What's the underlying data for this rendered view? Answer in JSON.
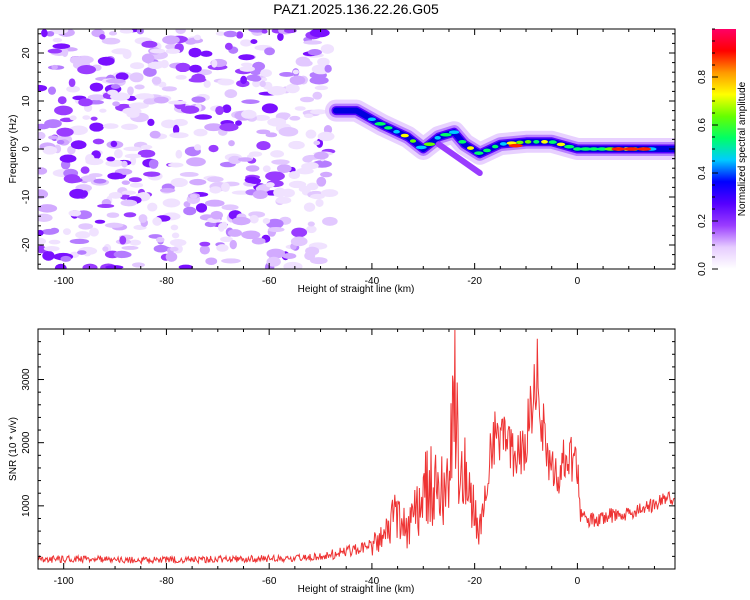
{
  "title": "PAZ1.2025.136.22.26.G05",
  "chart_data": [
    {
      "type": "heatmap",
      "xlabel": "Height of straight line (km)",
      "ylabel": "Frequency (Hz)",
      "xlim": [
        -105,
        19
      ],
      "ylim": [
        -25,
        25
      ],
      "x_ticks": [
        -100,
        -80,
        -60,
        -40,
        -20,
        0
      ],
      "x_tick_labels": [
        "-100",
        "-80",
        "-60",
        "-40",
        "-20",
        "0"
      ],
      "y_ticks": [
        20,
        10,
        0,
        -10,
        -20
      ],
      "y_tick_labels": [
        "20",
        "10",
        "0",
        "-10",
        "-20"
      ],
      "noise_region_x": [
        -105,
        -48
      ],
      "signal_ridge": [
        {
          "x": -47,
          "y": 8
        },
        {
          "x": -43,
          "y": 8
        },
        {
          "x": -38,
          "y": 5
        },
        {
          "x": -33,
          "y": 2.5
        },
        {
          "x": -30,
          "y": 0
        },
        {
          "x": -27,
          "y": 2.5
        },
        {
          "x": -24,
          "y": 3.5
        },
        {
          "x": -22,
          "y": 1
        },
        {
          "x": -19,
          "y": -1
        },
        {
          "x": -15,
          "y": 1
        },
        {
          "x": -10,
          "y": 1.5
        },
        {
          "x": -5,
          "y": 1.5
        },
        {
          "x": 0,
          "y": 0
        },
        {
          "x": 5,
          "y": 0
        },
        {
          "x": 10,
          "y": 0
        },
        {
          "x": 19,
          "y": 0
        }
      ],
      "colorbar": {
        "label": "Normalized spectral amplitude",
        "range": [
          0,
          1
        ],
        "ticks": [
          0.0,
          0.2,
          0.4,
          0.6,
          0.8
        ],
        "tick_labels": [
          "0.0",
          "0.2",
          "0.4",
          "0.6",
          "0.8"
        ],
        "colors": [
          "#ffffff",
          "#e6ccff",
          "#9a3cff",
          "#5500ff",
          "#0000ff",
          "#00ccff",
          "#00ff66",
          "#66ff00",
          "#ffff00",
          "#ff9900",
          "#ff0000",
          "#ff0066"
        ]
      }
    },
    {
      "type": "line",
      "xlabel": "Height of straight line (km)",
      "ylabel": "SNR (10 * v/v)",
      "xlim": [
        -105,
        19
      ],
      "ylim": [
        0,
        3800
      ],
      "x_ticks": [
        -100,
        -80,
        -60,
        -40,
        -20,
        0
      ],
      "x_tick_labels": [
        "-100",
        "-80",
        "-60",
        "-40",
        "-20",
        "0"
      ],
      "y_ticks": [
        1000,
        2000,
        3000
      ],
      "y_tick_labels": [
        "1000",
        "2000",
        "3000"
      ],
      "line_color": "#ee3333",
      "series": [
        {
          "name": "SNR",
          "points": [
            [
              -105,
              150
            ],
            [
              -95,
              160
            ],
            [
              -85,
              140
            ],
            [
              -75,
              150
            ],
            [
              -65,
              160
            ],
            [
              -55,
              170
            ],
            [
              -50,
              200
            ],
            [
              -46,
              260
            ],
            [
              -42,
              330
            ],
            [
              -38,
              450
            ],
            [
              -35,
              900
            ],
            [
              -33,
              600
            ],
            [
              -31,
              950
            ],
            [
              -29,
              1400
            ],
            [
              -27,
              1200
            ],
            [
              -25,
              1300
            ],
            [
              -24,
              3800
            ],
            [
              -23,
              1500
            ],
            [
              -21,
              1300
            ],
            [
              -19,
              600
            ],
            [
              -18,
              1300
            ],
            [
              -16,
              2200
            ],
            [
              -14,
              2000
            ],
            [
              -12,
              1700
            ],
            [
              -10,
              2000
            ],
            [
              -8,
              3200
            ],
            [
              -6,
              1800
            ],
            [
              -4,
              1400
            ],
            [
              -2,
              1850
            ],
            [
              0,
              1600
            ],
            [
              0.5,
              850
            ],
            [
              2,
              750
            ],
            [
              6,
              850
            ],
            [
              10,
              850
            ],
            [
              14,
              1000
            ],
            [
              19,
              1150
            ]
          ]
        }
      ]
    }
  ]
}
